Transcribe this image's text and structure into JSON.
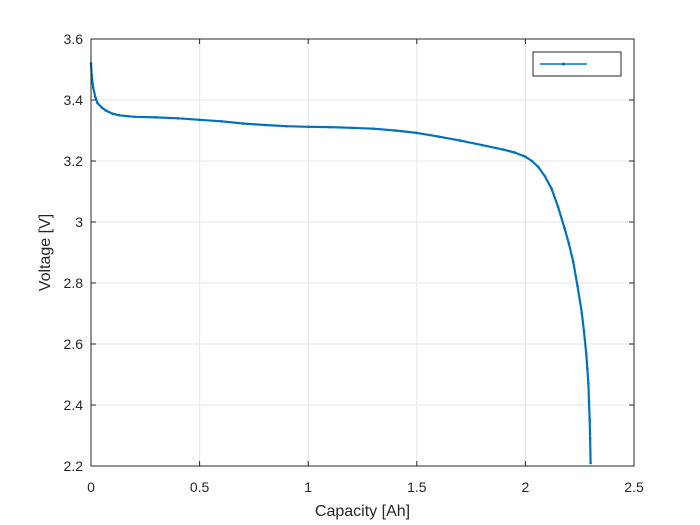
{
  "chart_data": {
    "type": "line",
    "title": "",
    "xlabel": "Capacity [Ah]",
    "ylabel": "Voltage [V]",
    "xlim": [
      0,
      2.5
    ],
    "ylim": [
      2.2,
      3.6
    ],
    "xticks": [
      0,
      0.5,
      1,
      1.5,
      2,
      2.5
    ],
    "xtick_labels": [
      "0",
      "0.5",
      "1",
      "1.5",
      "2",
      "2.5"
    ],
    "yticks": [
      2.2,
      2.4,
      2.6,
      2.8,
      3.0,
      3.2,
      3.4,
      3.6
    ],
    "ytick_labels": [
      "2.2",
      "2.4",
      "2.6",
      "2.8",
      "3",
      "3.2",
      "3.4",
      "3.6"
    ],
    "grid": true,
    "legend": {
      "placement": "top-right",
      "entries": [
        ""
      ]
    },
    "colors": {
      "series": "#0072BD",
      "axis": "#262626",
      "grid": "#e6e6e6"
    },
    "series": [
      {
        "marker": "dot",
        "x": [
          0.0,
          0.003,
          0.01,
          0.02,
          0.03,
          0.05,
          0.07,
          0.1,
          0.13,
          0.17,
          0.2,
          0.3,
          0.4,
          0.5,
          0.6,
          0.7,
          0.8,
          0.9,
          1.0,
          1.1,
          1.2,
          1.3,
          1.4,
          1.5,
          1.6,
          1.7,
          1.8,
          1.9,
          1.95,
          2.0,
          2.03,
          2.06,
          2.09,
          2.12,
          2.15,
          2.18,
          2.2,
          2.22,
          2.24,
          2.26,
          2.27,
          2.28,
          2.285,
          2.29,
          2.293,
          2.296,
          2.298,
          2.3
        ],
        "y": [
          3.52,
          3.48,
          3.44,
          3.41,
          3.39,
          3.375,
          3.365,
          3.355,
          3.35,
          3.347,
          3.345,
          3.343,
          3.34,
          3.335,
          3.33,
          3.323,
          3.318,
          3.314,
          3.312,
          3.311,
          3.309,
          3.306,
          3.3,
          3.292,
          3.28,
          3.267,
          3.252,
          3.237,
          3.228,
          3.214,
          3.2,
          3.18,
          3.15,
          3.11,
          3.05,
          2.98,
          2.93,
          2.87,
          2.79,
          2.7,
          2.64,
          2.57,
          2.52,
          2.47,
          2.41,
          2.35,
          2.29,
          2.21
        ]
      }
    ]
  }
}
